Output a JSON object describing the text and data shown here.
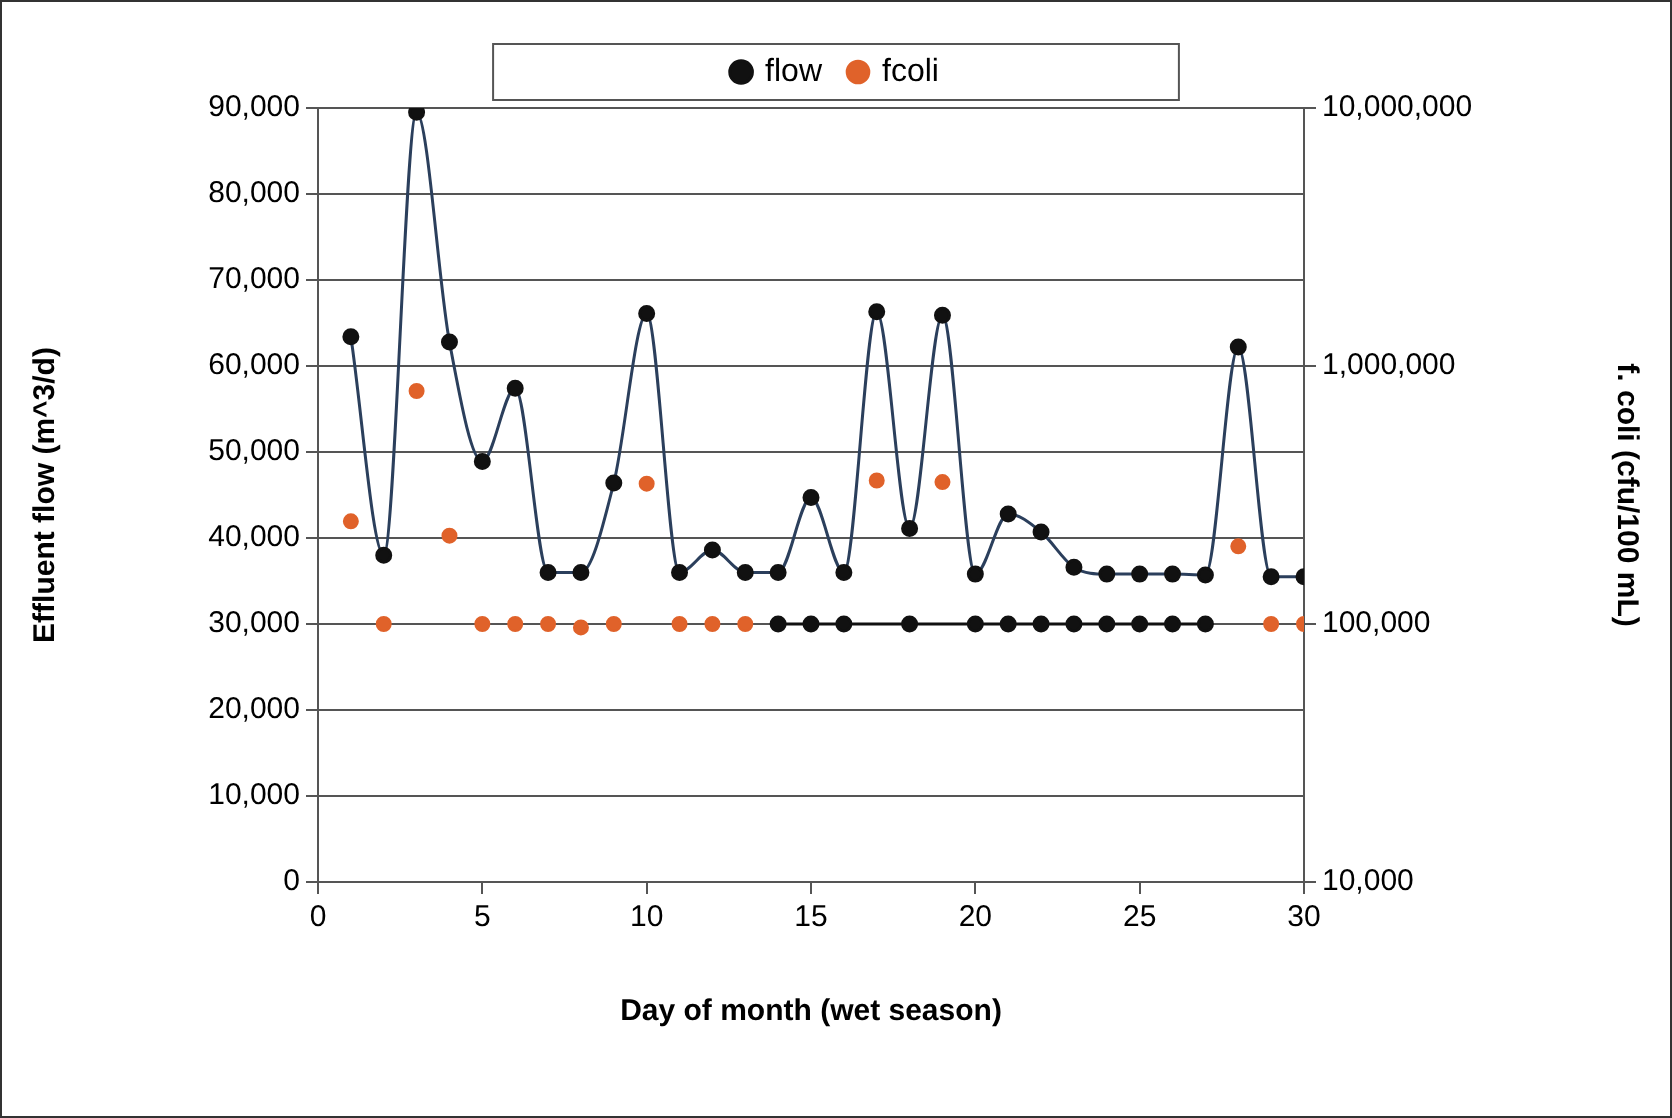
{
  "chart_data": {
    "type": "line",
    "xlabel": "Day of month (wet season)",
    "ylabel": "Effluent flow (m^3/d)",
    "y2label": "f. coli (cfu/100 mL)",
    "xlim": [
      0,
      30
    ],
    "xticks": [
      0,
      5,
      10,
      15,
      20,
      25,
      30
    ],
    "ylim": [
      0,
      90000
    ],
    "yticks": [
      0,
      {
        "value": 10000,
        "label": "10,000"
      },
      {
        "value": 20000,
        "label": "20,000"
      },
      {
        "value": 30000,
        "label": "30,000"
      },
      {
        "value": 40000,
        "label": "40,000"
      },
      {
        "value": 50000,
        "label": "50,000"
      },
      {
        "value": 60000,
        "label": "60,000"
      },
      {
        "value": 70000,
        "label": "70,000"
      },
      {
        "value": 80000,
        "label": "80,000"
      },
      {
        "value": 90000,
        "label": "90,000"
      }
    ],
    "y2lim": [
      10000,
      10000000
    ],
    "y2ticks": [
      {
        "value": 10000,
        "label": "10,000"
      },
      {
        "value": 100000,
        "label": "100,000"
      },
      {
        "value": 1000000,
        "label": "1,000,000"
      },
      {
        "value": 10000000,
        "label": "10,000,000"
      }
    ],
    "log": "y2",
    "grid": "y",
    "legend": "top",
    "marker": "circle",
    "series": [
      {
        "name": "flow",
        "type": "line",
        "color": "#2b3f5c",
        "x": [
          1,
          2,
          3,
          4,
          5,
          6,
          7,
          8,
          9,
          10,
          11,
          12,
          13,
          14,
          15,
          16,
          17,
          18,
          19,
          20,
          21,
          22,
          23,
          24,
          25,
          26,
          27,
          28,
          29,
          30
        ],
        "values": [
          63400,
          38000,
          89500,
          62800,
          48900,
          57400,
          36000,
          36000,
          46400,
          66100,
          36000,
          38600,
          36000,
          36000,
          44700,
          36000,
          66300,
          41100,
          65900,
          35800,
          42800,
          40700,
          36600,
          35800,
          35800,
          35800,
          35700,
          62200,
          35500,
          35500
        ]
      },
      {
        "name": "fcoli",
        "type": "scatter",
        "axis": "y2",
        "color": "#e0622a",
        "x": [
          1,
          2,
          3,
          4,
          5,
          6,
          7,
          8,
          9,
          10,
          11,
          12,
          13,
          17,
          19,
          28,
          29,
          30
        ],
        "values": [
          250000,
          100000,
          800000,
          220000,
          100000,
          100000,
          100000,
          97000,
          100000,
          350000,
          100000,
          100000,
          100000,
          360000,
          355000,
          200000,
          100000,
          100000
        ]
      },
      {
        "type": "line",
        "axis": "y2",
        "color": "#111111",
        "x": [
          14,
          15,
          16,
          18,
          20,
          21,
          22,
          23,
          24,
          25,
          26,
          27
        ],
        "values": [
          100000,
          100000,
          100000,
          100000,
          100000,
          100000,
          100000,
          100000,
          100000,
          100000,
          100000,
          100000
        ]
      }
    ]
  }
}
